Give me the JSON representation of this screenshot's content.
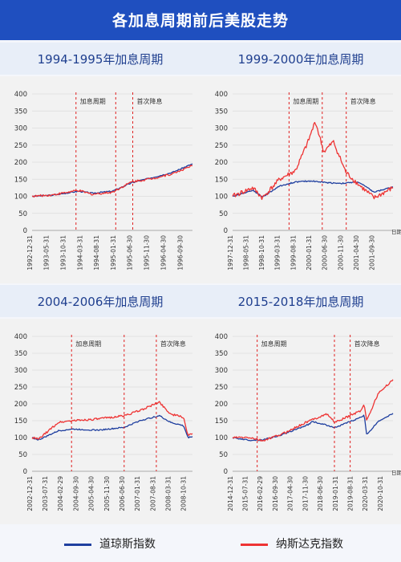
{
  "page": {
    "title": "各加息周期前后美股走势"
  },
  "colors": {
    "dow": "#1f3f9f",
    "nasdaq": "#ee3333",
    "banner": "#1f4fbf"
  },
  "legend": {
    "dow_label": "道琼斯指数",
    "nasdaq_label": "纳斯达克指数"
  },
  "chart_data": [
    {
      "type": "line",
      "title": "1994-1995年加息周期",
      "ylim": [
        0,
        400
      ],
      "yticks": [
        0,
        50,
        100,
        150,
        200,
        250,
        300,
        350,
        400
      ],
      "xlim": [
        "1992-12-31",
        "1996-12-31"
      ],
      "x_ticks": [
        "1992-12-31",
        "1993-05-31",
        "1993-10-31",
        "1994-03-31",
        "1994-08-31",
        "1995-01-31",
        "1995-06-30",
        "1995-11-30",
        "1996-04-30",
        "1996-09-30"
      ],
      "markers": [
        {
          "date": "1994-02-04",
          "label": "加息周期"
        },
        {
          "date": "1995-02-01",
          "label": ""
        },
        {
          "date": "1995-07-06",
          "label": "首次降息"
        }
      ],
      "series": [
        {
          "name": "道琼斯指数",
          "x": [
            "1992-12-31",
            "1993-06-30",
            "1993-12-31",
            "1994-02-28",
            "1994-06-30",
            "1994-12-31",
            "1995-06-30",
            "1995-12-31",
            "1996-06-30",
            "1996-12-31"
          ],
          "values": [
            100,
            103,
            112,
            115,
            109,
            115,
            140,
            155,
            170,
            195
          ]
        },
        {
          "name": "纳斯达克指数",
          "x": [
            "1992-12-31",
            "1993-06-30",
            "1993-12-31",
            "1994-02-28",
            "1994-06-30",
            "1994-12-31",
            "1995-06-30",
            "1995-12-31",
            "1996-06-30",
            "1996-12-31"
          ],
          "values": [
            100,
            104,
            114,
            117,
            106,
            112,
            143,
            152,
            166,
            190
          ]
        }
      ]
    },
    {
      "type": "line",
      "title": "1999-2000年加息周期",
      "ylim": [
        0,
        400
      ],
      "yticks": [
        0,
        50,
        100,
        150,
        200,
        250,
        300,
        350,
        400
      ],
      "xlim": [
        "1997-12-31",
        "2002-03-31"
      ],
      "x_ticks": [
        "1997-12-31",
        "1998-05-31",
        "1998-10-31",
        "1999-03-31",
        "1999-08-31",
        "2000-01-31",
        "2000-06-30",
        "2000-11-30",
        "2001-04-30",
        "2001-09-30"
      ],
      "x_axis_label": "日期",
      "markers": [
        {
          "date": "1999-06-30",
          "label": "加息周期"
        },
        {
          "date": "2000-05-16",
          "label": ""
        },
        {
          "date": "2001-01-03",
          "label": "首次降息"
        }
      ],
      "series": [
        {
          "name": "道琼斯指数",
          "x": [
            "1997-12-31",
            "1998-07-15",
            "1998-10-15",
            "1999-03-31",
            "1999-08-31",
            "2000-01-31",
            "2000-06-30",
            "2000-11-30",
            "2001-04-30",
            "2001-09-30",
            "2002-03-31"
          ],
          "values": [
            100,
            118,
            98,
            130,
            142,
            145,
            140,
            138,
            142,
            112,
            128
          ]
        },
        {
          "name": "纳斯达克指数",
          "x": [
            "1997-12-31",
            "1998-07-15",
            "1998-10-15",
            "1999-03-31",
            "1999-08-31",
            "1999-12-31",
            "2000-03-10",
            "2000-05-31",
            "2000-09-01",
            "2000-12-31",
            "2001-04-30",
            "2001-09-30",
            "2002-03-31"
          ],
          "values": [
            100,
            125,
            95,
            150,
            175,
            260,
            320,
            230,
            260,
            170,
            135,
            95,
            125
          ]
        }
      ]
    },
    {
      "type": "line",
      "title": "2004-2006年加息周期",
      "ylim": [
        0,
        400
      ],
      "yticks": [
        0,
        50,
        100,
        150,
        200,
        250,
        300,
        350,
        400
      ],
      "xlim": [
        "2002-12-31",
        "2009-01-31"
      ],
      "x_ticks": [
        "2002-12-31",
        "2003-07-31",
        "2004-02-29",
        "2004-09-30",
        "2005-04-30",
        "2005-11-30",
        "2006-06-30",
        "2007-01-31",
        "2007-08-31",
        "2008-03-31",
        "2008-10-31"
      ],
      "markers": [
        {
          "date": "2004-06-30",
          "label": "加息周期"
        },
        {
          "date": "2006-06-29",
          "label": ""
        },
        {
          "date": "2007-09-18",
          "label": "首次降息"
        }
      ],
      "series": [
        {
          "name": "道琼斯指数",
          "x": [
            "2002-12-31",
            "2003-03-31",
            "2003-12-31",
            "2004-06-30",
            "2005-06-30",
            "2006-06-30",
            "2007-01-31",
            "2007-10-31",
            "2008-03-31",
            "2008-09-30",
            "2008-11-30",
            "2009-01-31"
          ],
          "values": [
            100,
            93,
            120,
            125,
            122,
            130,
            150,
            165,
            145,
            135,
            100,
            103
          ]
        },
        {
          "name": "纳斯达克指数",
          "x": [
            "2002-12-31",
            "2003-03-31",
            "2003-12-31",
            "2004-06-30",
            "2005-06-30",
            "2006-06-30",
            "2007-01-31",
            "2007-10-31",
            "2008-03-31",
            "2008-09-30",
            "2008-11-30",
            "2009-01-31"
          ],
          "values": [
            100,
            95,
            145,
            150,
            155,
            165,
            180,
            205,
            170,
            160,
            105,
            112
          ]
        }
      ]
    },
    {
      "type": "line",
      "title": "2015-2018年加息周期",
      "ylim": [
        0,
        400
      ],
      "yticks": [
        0,
        50,
        100,
        150,
        200,
        250,
        300,
        350,
        400
      ],
      "xlim": [
        "2014-12-31",
        "2021-03-31"
      ],
      "x_ticks": [
        "2014-12-31",
        "2015-07-31",
        "2016-02-29",
        "2016-09-30",
        "2017-04-30",
        "2017-11-30",
        "2018-06-30",
        "2019-01-31",
        "2019-08-31",
        "2020-03-31",
        "2020-10-31"
      ],
      "x_axis_label": "日期",
      "markers": [
        {
          "date": "2015-12-16",
          "label": "加息周期"
        },
        {
          "date": "2018-12-19",
          "label": ""
        },
        {
          "date": "2019-07-31",
          "label": "首次降息"
        }
      ],
      "series": [
        {
          "name": "道琼斯指数",
          "x": [
            "2014-12-31",
            "2015-08-31",
            "2016-02-29",
            "2016-11-30",
            "2017-12-31",
            "2018-01-31",
            "2018-12-31",
            "2019-12-31",
            "2020-02-15",
            "2020-03-23",
            "2020-08-31",
            "2021-03-31"
          ],
          "values": [
            100,
            92,
            93,
            108,
            140,
            148,
            130,
            160,
            168,
            107,
            148,
            172
          ]
        },
        {
          "name": "纳斯达克指数",
          "x": [
            "2014-12-31",
            "2015-08-31",
            "2016-02-29",
            "2016-11-30",
            "2017-12-31",
            "2018-08-31",
            "2018-12-31",
            "2019-12-31",
            "2020-02-15",
            "2020-03-23",
            "2020-08-31",
            "2021-03-31"
          ],
          "values": [
            100,
            100,
            90,
            110,
            150,
            170,
            145,
            180,
            200,
            150,
            230,
            272
          ]
        }
      ]
    }
  ]
}
